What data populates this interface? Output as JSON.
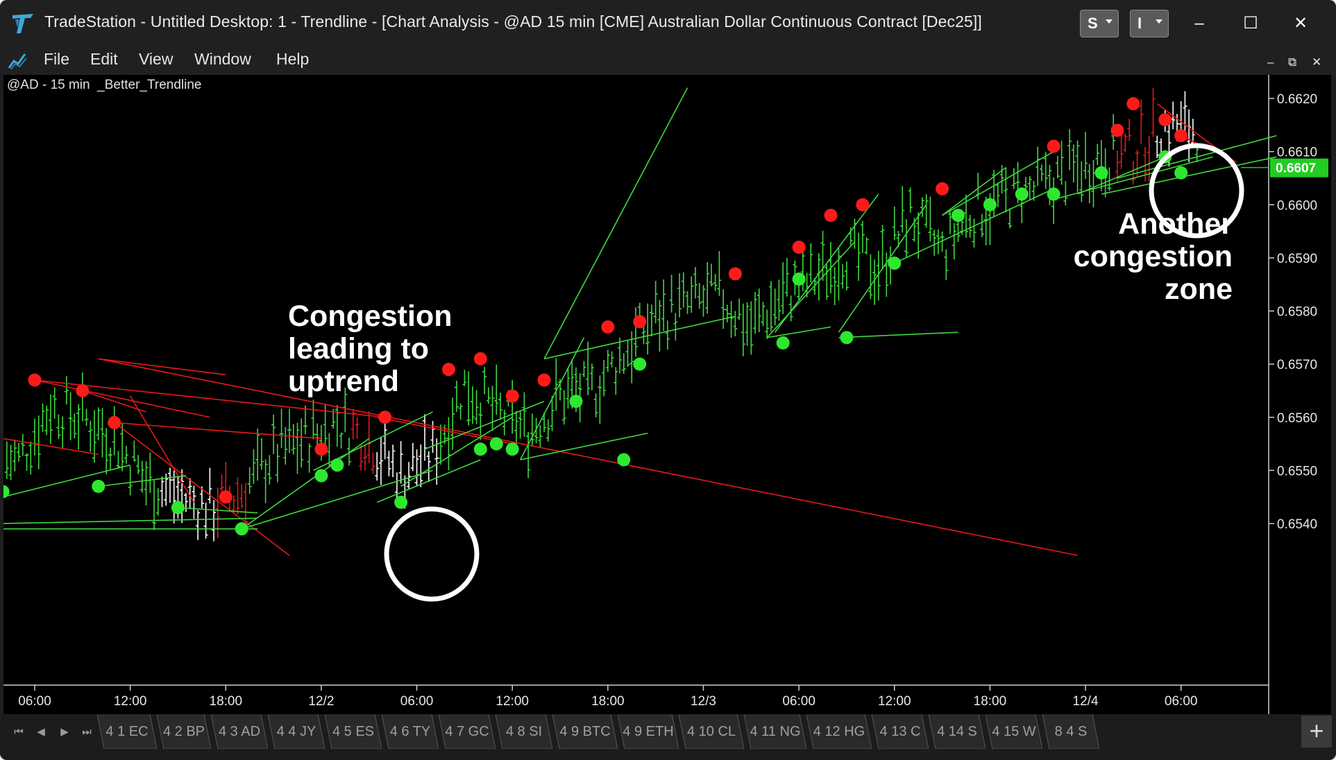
{
  "app": {
    "name": "TradeStation",
    "title": "TradeStation  - Untitled Desktop: 1 - Trendline - [Chart Analysis - @AD 15 min [CME] Australian Dollar Continuous Contract [Dec25]]",
    "workspace_buttons": [
      "S",
      "I"
    ],
    "window_controls": {
      "minimize": "–",
      "maximize": "☐",
      "close": "✕"
    },
    "subwindow_controls": {
      "minimize": "–",
      "restore": "⧉",
      "close": "✕"
    }
  },
  "menu": [
    "File",
    "Edit",
    "View",
    "Window",
    "Help"
  ],
  "chart": {
    "label": "@AD - 15 min  _Better_Trendline",
    "price_axis": [
      "0.6620",
      "0.6610",
      "0.6600",
      "0.6590",
      "0.6580",
      "0.6570",
      "0.6560",
      "0.6550",
      "0.6540"
    ],
    "current_price": "0.6607",
    "time_axis": [
      "06:00",
      "12:00",
      "18:00",
      "12/2",
      "06:00",
      "12:00",
      "18:00",
      "12/3",
      "06:00",
      "12:00",
      "18:00",
      "12/4",
      "06:00"
    ],
    "annotations": {
      "left": [
        "Congestion",
        "leading to",
        "uptrend"
      ],
      "right": [
        "Another",
        "congestion",
        "zone"
      ]
    },
    "colors": {
      "up": "#3fd93f",
      "down": "#e81919",
      "congestion": "#ffffff",
      "price_tag": "#22cc22"
    }
  },
  "chart_data": {
    "type": "line",
    "title": "@AD - 15 min  _Better_Trendline",
    "symbol": "@AD",
    "interval": "15 min",
    "xlabel": "",
    "ylabel": "",
    "ylim": [
      0.6534,
      0.664
    ],
    "current_price": 0.6607,
    "x": [
      "12/1 05:00",
      "12/1 07:00",
      "12/1 09:00",
      "12/1 11:00",
      "12/1 13:00",
      "12/1 15:00",
      "12/1 17:00",
      "12/1 19:00",
      "12/1 21:00",
      "12/1 23:00",
      "12/2 01:00",
      "12/2 03:00",
      "12/2 05:00",
      "12/2 07:00",
      "12/2 09:00",
      "12/2 11:00",
      "12/2 13:00",
      "12/2 15:00",
      "12/2 17:00",
      "12/2 19:00",
      "12/2 21:00",
      "12/2 23:00",
      "12/3 01:00",
      "12/3 03:00",
      "12/3 05:00",
      "12/3 07:00",
      "12/3 09:00",
      "12/3 11:00",
      "12/3 13:00",
      "12/3 15:00",
      "12/3 17:00",
      "12/3 19:00",
      "12/3 21:00",
      "12/3 23:00",
      "12/4 01:00",
      "12/4 03:00",
      "12/4 05:00",
      "12/4 07:00",
      "12/4 09:00"
    ],
    "series": [
      {
        "values": [
          0.6552,
          0.6562,
          0.656,
          0.6556,
          0.6548,
          0.6545,
          0.6543,
          0.6546,
          0.6553,
          0.6556,
          0.6559,
          0.6556,
          0.6549,
          0.6553,
          0.6566,
          0.6561,
          0.6557,
          0.6564,
          0.6565,
          0.6572,
          0.6579,
          0.6581,
          0.6583,
          0.6577,
          0.6583,
          0.6586,
          0.6591,
          0.6588,
          0.6598,
          0.6591,
          0.6599,
          0.6601,
          0.6603,
          0.6606,
          0.6609,
          0.661,
          0.6615,
          0.6614,
          0.6607
        ]
      }
    ],
    "swing_highs": [
      {
        "x": "12/1 06:00",
        "y": 0.6567
      },
      {
        "x": "12/1 09:00",
        "y": 0.6565
      },
      {
        "x": "12/1 11:00",
        "y": 0.6559
      },
      {
        "x": "12/1 18:00",
        "y": 0.6545
      },
      {
        "x": "12/2 00:00",
        "y": 0.6554
      },
      {
        "x": "12/2 04:00",
        "y": 0.656
      },
      {
        "x": "12/2 08:00",
        "y": 0.6569
      },
      {
        "x": "12/2 10:00",
        "y": 0.6571
      },
      {
        "x": "12/2 12:00",
        "y": 0.6564
      },
      {
        "x": "12/2 14:00",
        "y": 0.6567
      },
      {
        "x": "12/2 18:00",
        "y": 0.6577
      },
      {
        "x": "12/2 20:00",
        "y": 0.6578
      },
      {
        "x": "12/3 02:00",
        "y": 0.6587
      },
      {
        "x": "12/3 06:00",
        "y": 0.6592
      },
      {
        "x": "12/3 08:00",
        "y": 0.6598
      },
      {
        "x": "12/3 10:00",
        "y": 0.66
      },
      {
        "x": "12/3 15:00",
        "y": 0.6603
      },
      {
        "x": "12/3 22:00",
        "y": 0.6611
      },
      {
        "x": "12/4 02:00",
        "y": 0.6614
      },
      {
        "x": "12/4 03:00",
        "y": 0.6619
      },
      {
        "x": "12/4 05:00",
        "y": 0.6616
      },
      {
        "x": "12/4 06:00",
        "y": 0.6613
      }
    ],
    "swing_lows": [
      {
        "x": "12/1 04:00",
        "y": 0.6546
      },
      {
        "x": "12/1 10:00",
        "y": 0.6547
      },
      {
        "x": "12/1 15:00",
        "y": 0.6543
      },
      {
        "x": "12/1 19:00",
        "y": 0.6539
      },
      {
        "x": "12/2 00:00",
        "y": 0.6549
      },
      {
        "x": "12/2 01:00",
        "y": 0.6551
      },
      {
        "x": "12/2 05:00",
        "y": 0.6544
      },
      {
        "x": "12/2 10:00",
        "y": 0.6554
      },
      {
        "x": "12/2 11:00",
        "y": 0.6555
      },
      {
        "x": "12/2 12:00",
        "y": 0.6554
      },
      {
        "x": "12/2 16:00",
        "y": 0.6563
      },
      {
        "x": "12/2 19:00",
        "y": 0.6552
      },
      {
        "x": "12/2 20:00",
        "y": 0.657
      },
      {
        "x": "12/3 05:00",
        "y": 0.6574
      },
      {
        "x": "12/3 06:00",
        "y": 0.6586
      },
      {
        "x": "12/3 09:00",
        "y": 0.6575
      },
      {
        "x": "12/3 12:00",
        "y": 0.6589
      },
      {
        "x": "12/3 16:00",
        "y": 0.6598
      },
      {
        "x": "12/3 18:00",
        "y": 0.66
      },
      {
        "x": "12/3 20:00",
        "y": 0.6602
      },
      {
        "x": "12/3 22:00",
        "y": 0.6602
      },
      {
        "x": "12/4 01:00",
        "y": 0.6606
      },
      {
        "x": "12/4 05:00",
        "y": 0.6609
      },
      {
        "x": "12/4 06:00",
        "y": 0.6606
      }
    ]
  },
  "symbol_tabs": [
    "4 1 EC",
    "4 2 BP",
    "4 3 AD",
    "4 4 JY",
    "4 5 ES",
    "4 6 TY",
    "4 7 GC",
    "4 8 SI",
    "4 9 BTC",
    "4 9 ETH",
    "4 10 CL",
    "4 11 NG",
    "4 12 HG",
    "4 13 C",
    "4 14 S",
    "4 15 W",
    "8 4 S"
  ],
  "tab_nav": [
    "⏮",
    "◀",
    "▶",
    "⏭"
  ],
  "add_tab_label": "+"
}
